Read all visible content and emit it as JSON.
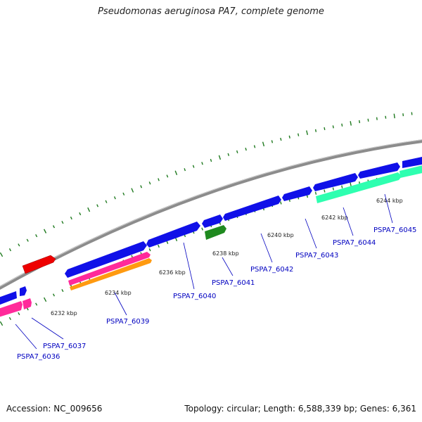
{
  "title": "Pseudomonas aeruginosa PA7, complete genome",
  "footer": {
    "accession": "Accession: NC_009656",
    "topology": "Topology: circular; Length: 6,588,339 bp; Genes: 6,361"
  },
  "colors": {
    "backbone": "#8c8c8c",
    "tick": "#1f7a1f",
    "gene_label": "#0000c0",
    "cds_blue": "#1010e8",
    "cds_red": "#ee0000",
    "cds_pink": "#ff2a9a",
    "cds_orange": "#ff9a10",
    "cds_green": "#1f8a1f",
    "cds_teal": "#2effb0"
  },
  "scale_labels": [
    "6232 kbp",
    "6234 kbp",
    "6236 kbp",
    "6238 kbp",
    "6240 kbp",
    "6242 kbp",
    "6244 kbp"
  ],
  "gene_labels": [
    "PSPA7_6036",
    "PSPA7_6037",
    "PSPA7_6039",
    "PSPA7_6040",
    "PSPA7_6041",
    "PSPA7_6042",
    "PSPA7_6043",
    "PSPA7_6044",
    "PSPA7_6045"
  ]
}
